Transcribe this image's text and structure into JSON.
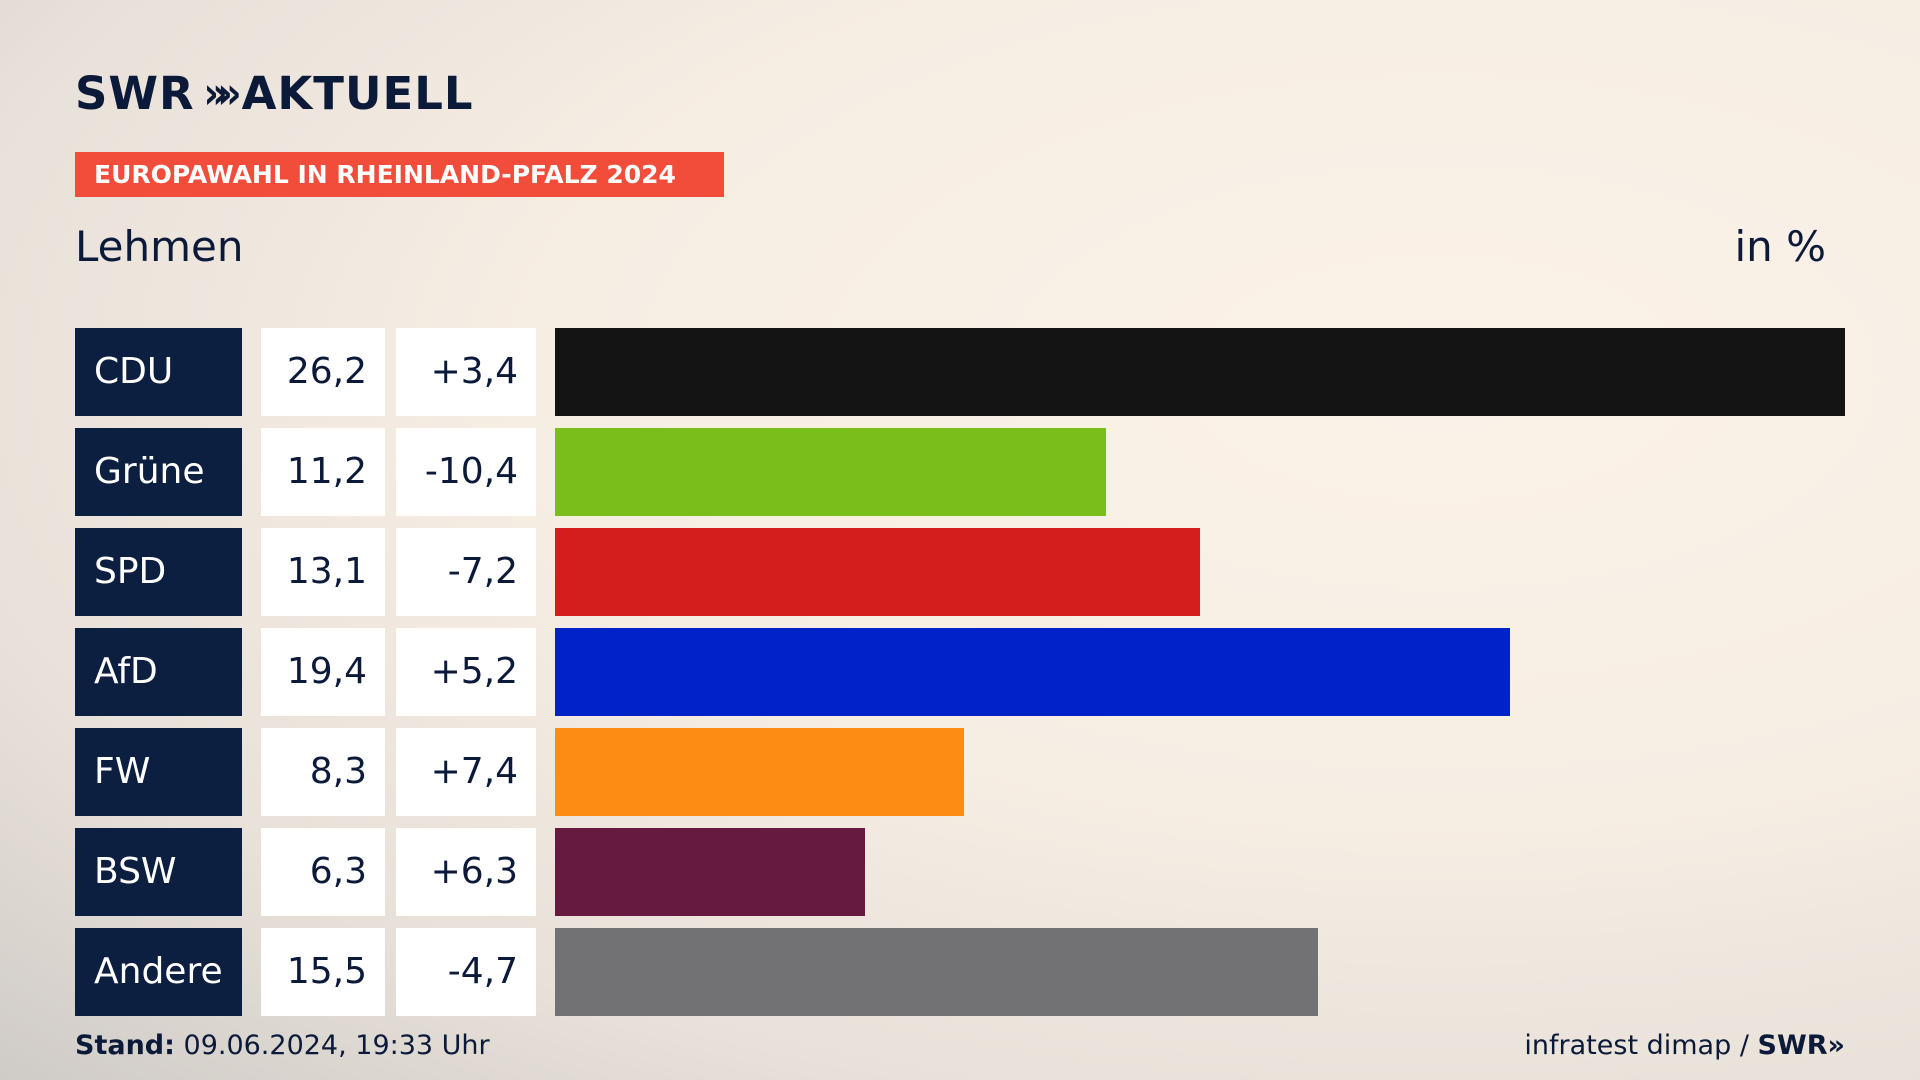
{
  "brand": {
    "name": "SWR",
    "chevrons": "»",
    "product": "AKTUELL"
  },
  "tag": "EUROPAWAHL IN RHEINLAND-PFALZ 2024",
  "place": "Lehmen",
  "unit": "in %",
  "footer": {
    "stand_label": "Stand:",
    "stand_value": "09.06.2024, 19:33 Uhr",
    "source": "infratest dimap /",
    "source_brand": "SWR»"
  },
  "colors": {
    "accent": "#f24d3b",
    "party_box": "#0d1f40"
  },
  "chart_data": {
    "type": "bar",
    "orientation": "horizontal",
    "categories": [
      "CDU",
      "Grüne",
      "SPD",
      "AfD",
      "FW",
      "BSW",
      "Andere"
    ],
    "values": [
      26.2,
      11.2,
      13.1,
      19.4,
      8.3,
      6.3,
      15.5
    ],
    "value_labels": [
      "26,2",
      "11,2",
      "13,1",
      "19,4",
      "8,3",
      "6,3",
      "15,5"
    ],
    "diff_labels": [
      "+3,4",
      "-10,4",
      "-7,2",
      "+5,2",
      "+7,4",
      "+6,3",
      "-4,7"
    ],
    "colors": [
      "#141414",
      "#7abe1c",
      "#d41e1e",
      "#0022c8",
      "#fc8c14",
      "#671a3f",
      "#727275"
    ],
    "xlim": [
      0,
      26.2
    ],
    "grid": false,
    "legend": "none"
  }
}
